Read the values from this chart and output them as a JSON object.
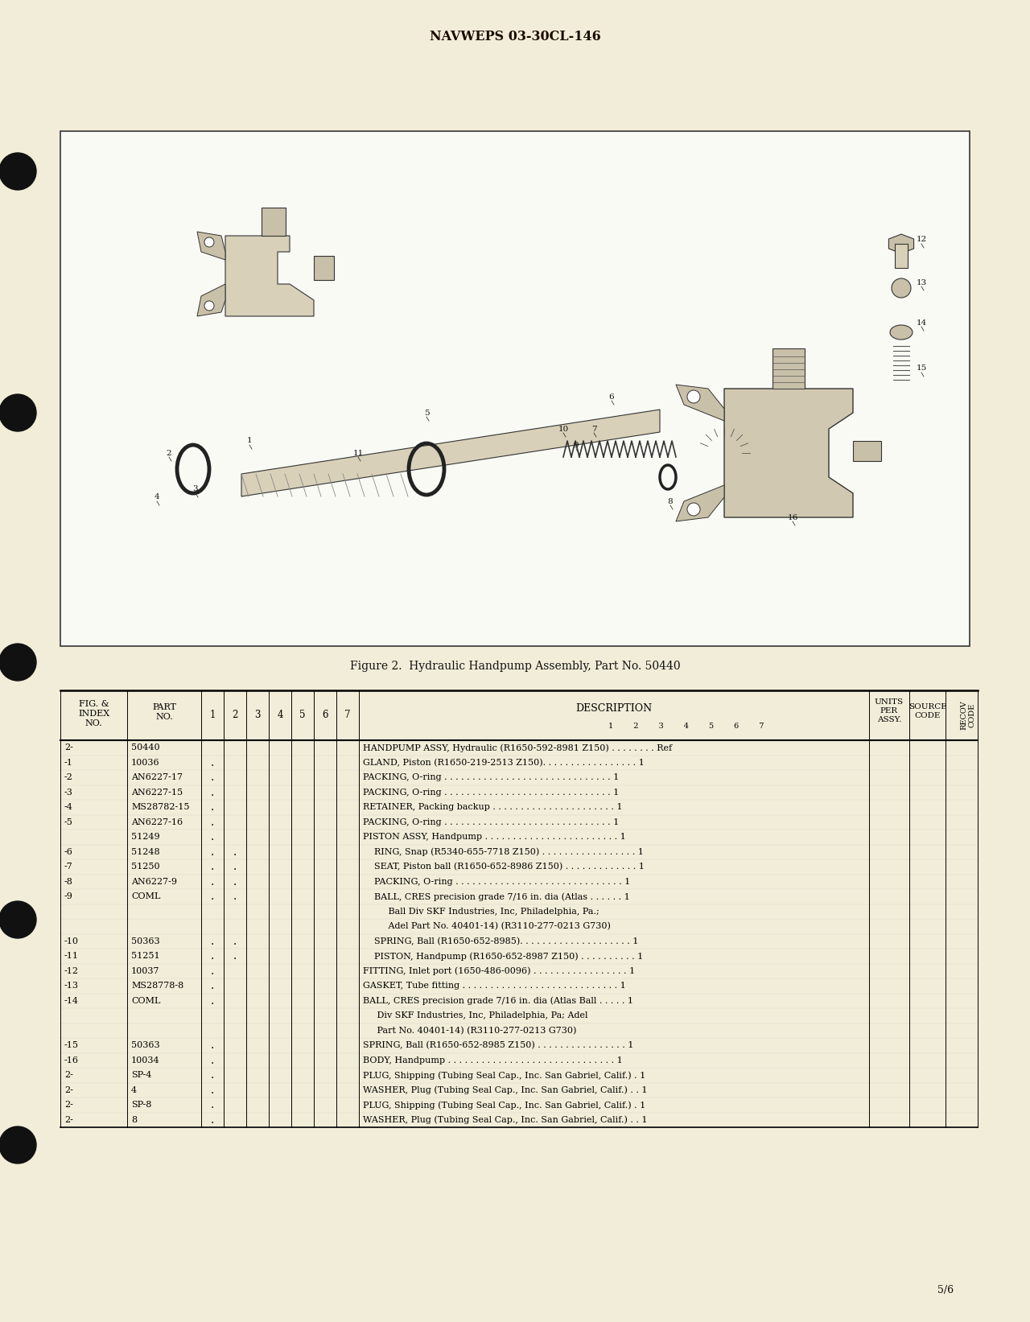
{
  "page_header": "NAVWEPS 03-30CL-146",
  "figure_caption": "Figure 2.  Hydraulic Handpump Assembly, Part No. 50440",
  "page_number": "5/6",
  "bg_color": "#F2EDD8",
  "fig_box_color": "#FAFAF5",
  "table_rows": [
    {
      "fig": "2-",
      "part": "50440",
      "dots": [],
      "desc": "HANDPUMP ASSY, Hydraulic (R1650-592-8981 Z150) . . . . . . . . Ref",
      "qty": ""
    },
    {
      "fig": "-1",
      "part": "10036",
      "dots": [
        1
      ],
      "desc": "GLAND, Piston (R1650-219-2513 Z150). . . . . . . . . . . . . . . . . 1",
      "qty": ""
    },
    {
      "fig": "-2",
      "part": "AN6227-17",
      "dots": [
        1
      ],
      "desc": "PACKING, O-ring . . . . . . . . . . . . . . . . . . . . . . . . . . . . . . 1",
      "qty": ""
    },
    {
      "fig": "-3",
      "part": "AN6227-15",
      "dots": [
        1
      ],
      "desc": "PACKING, O-ring . . . . . . . . . . . . . . . . . . . . . . . . . . . . . . 1",
      "qty": ""
    },
    {
      "fig": "-4",
      "part": "MS28782-15",
      "dots": [
        1
      ],
      "desc": "RETAINER, Packing backup . . . . . . . . . . . . . . . . . . . . . . 1",
      "qty": ""
    },
    {
      "fig": "-5",
      "part": "AN6227-16",
      "dots": [
        1
      ],
      "desc": "PACKING, O-ring . . . . . . . . . . . . . . . . . . . . . . . . . . . . . . 1",
      "qty": ""
    },
    {
      "fig": "",
      "part": "51249",
      "dots": [
        1
      ],
      "desc": "PISTON ASSY, Handpump . . . . . . . . . . . . . . . . . . . . . . . . 1",
      "qty": ""
    },
    {
      "fig": "-6",
      "part": "51248",
      "dots": [
        1,
        2
      ],
      "desc": "    RING, Snap (R5340-655-7718 Z150) . . . . . . . . . . . . . . . . . 1",
      "qty": ""
    },
    {
      "fig": "-7",
      "part": "51250",
      "dots": [
        1,
        2
      ],
      "desc": "    SEAT, Piston ball (R1650-652-8986 Z150) . . . . . . . . . . . . . 1",
      "qty": ""
    },
    {
      "fig": "-8",
      "part": "AN6227-9",
      "dots": [
        1,
        2
      ],
      "desc": "    PACKING, O-ring . . . . . . . . . . . . . . . . . . . . . . . . . . . . . . 1",
      "qty": ""
    },
    {
      "fig": "-9",
      "part": "COML",
      "dots": [
        1,
        2
      ],
      "desc": "    BALL, CRES precision grade 7/16 in. dia (Atlas . . . . . . 1",
      "qty": ""
    },
    {
      "fig": "",
      "part": "",
      "dots": [],
      "desc": "         Ball Div SKF Industries, Inc, Philadelphia, Pa.;",
      "qty": ""
    },
    {
      "fig": "",
      "part": "",
      "dots": [],
      "desc": "         Adel Part No. 40401-14) (R3110-277-0213 G730)",
      "qty": ""
    },
    {
      "fig": "-10",
      "part": "50363",
      "dots": [
        1,
        2
      ],
      "desc": "    SPRING, Ball (R1650-652-8985). . . . . . . . . . . . . . . . . . . . 1",
      "qty": ""
    },
    {
      "fig": "-11",
      "part": "51251",
      "dots": [
        1,
        2
      ],
      "desc": "    PISTON, Handpump (R1650-652-8987 Z150) . . . . . . . . . . 1",
      "qty": ""
    },
    {
      "fig": "-12",
      "part": "10037",
      "dots": [
        1
      ],
      "desc": "FITTING, Inlet port (1650-486-0096) . . . . . . . . . . . . . . . . . 1",
      "qty": ""
    },
    {
      "fig": "-13",
      "part": "MS28778-8",
      "dots": [
        1
      ],
      "desc": "GASKET, Tube fitting . . . . . . . . . . . . . . . . . . . . . . . . . . . . 1",
      "qty": ""
    },
    {
      "fig": "-14",
      "part": "COML",
      "dots": [
        1
      ],
      "desc": "BALL, CRES precision grade 7/16 in. dia (Atlas Ball . . . . . 1",
      "qty": ""
    },
    {
      "fig": "",
      "part": "",
      "dots": [],
      "desc": "     Div SKF Industries, Inc, Philadelphia, Pa; Adel",
      "qty": ""
    },
    {
      "fig": "",
      "part": "",
      "dots": [],
      "desc": "     Part No. 40401-14) (R3110-277-0213 G730)",
      "qty": ""
    },
    {
      "fig": "-15",
      "part": "50363",
      "dots": [
        1
      ],
      "desc": "SPRING, Ball (R1650-652-8985 Z150) . . . . . . . . . . . . . . . . 1",
      "qty": ""
    },
    {
      "fig": "-16",
      "part": "10034",
      "dots": [
        1
      ],
      "desc": "BODY, Handpump . . . . . . . . . . . . . . . . . . . . . . . . . . . . . . 1",
      "qty": ""
    },
    {
      "fig": "2-",
      "part": "SP-4",
      "dots": [
        1
      ],
      "desc": "PLUG, Shipping (Tubing Seal Cap., Inc. San Gabriel, Calif.) . 1",
      "qty": ""
    },
    {
      "fig": "2-",
      "part": "4",
      "dots": [
        1
      ],
      "desc": "WASHER, Plug (Tubing Seal Cap., Inc. San Gabriel, Calif.) . . 1",
      "qty": ""
    },
    {
      "fig": "2-",
      "part": "SP-8",
      "dots": [
        1
      ],
      "desc": "PLUG, Shipping (Tubing Seal Cap., Inc. San Gabriel, Calif.) . 1",
      "qty": ""
    },
    {
      "fig": "2-",
      "part": "8",
      "dots": [
        1
      ],
      "desc": "WASHER, Plug (Tubing Seal Cap., Inc. San Gabriel, Calif.) . . 1",
      "qty": ""
    }
  ],
  "dot_cols": [
    1,
    2,
    3,
    4,
    5,
    6,
    7
  ]
}
